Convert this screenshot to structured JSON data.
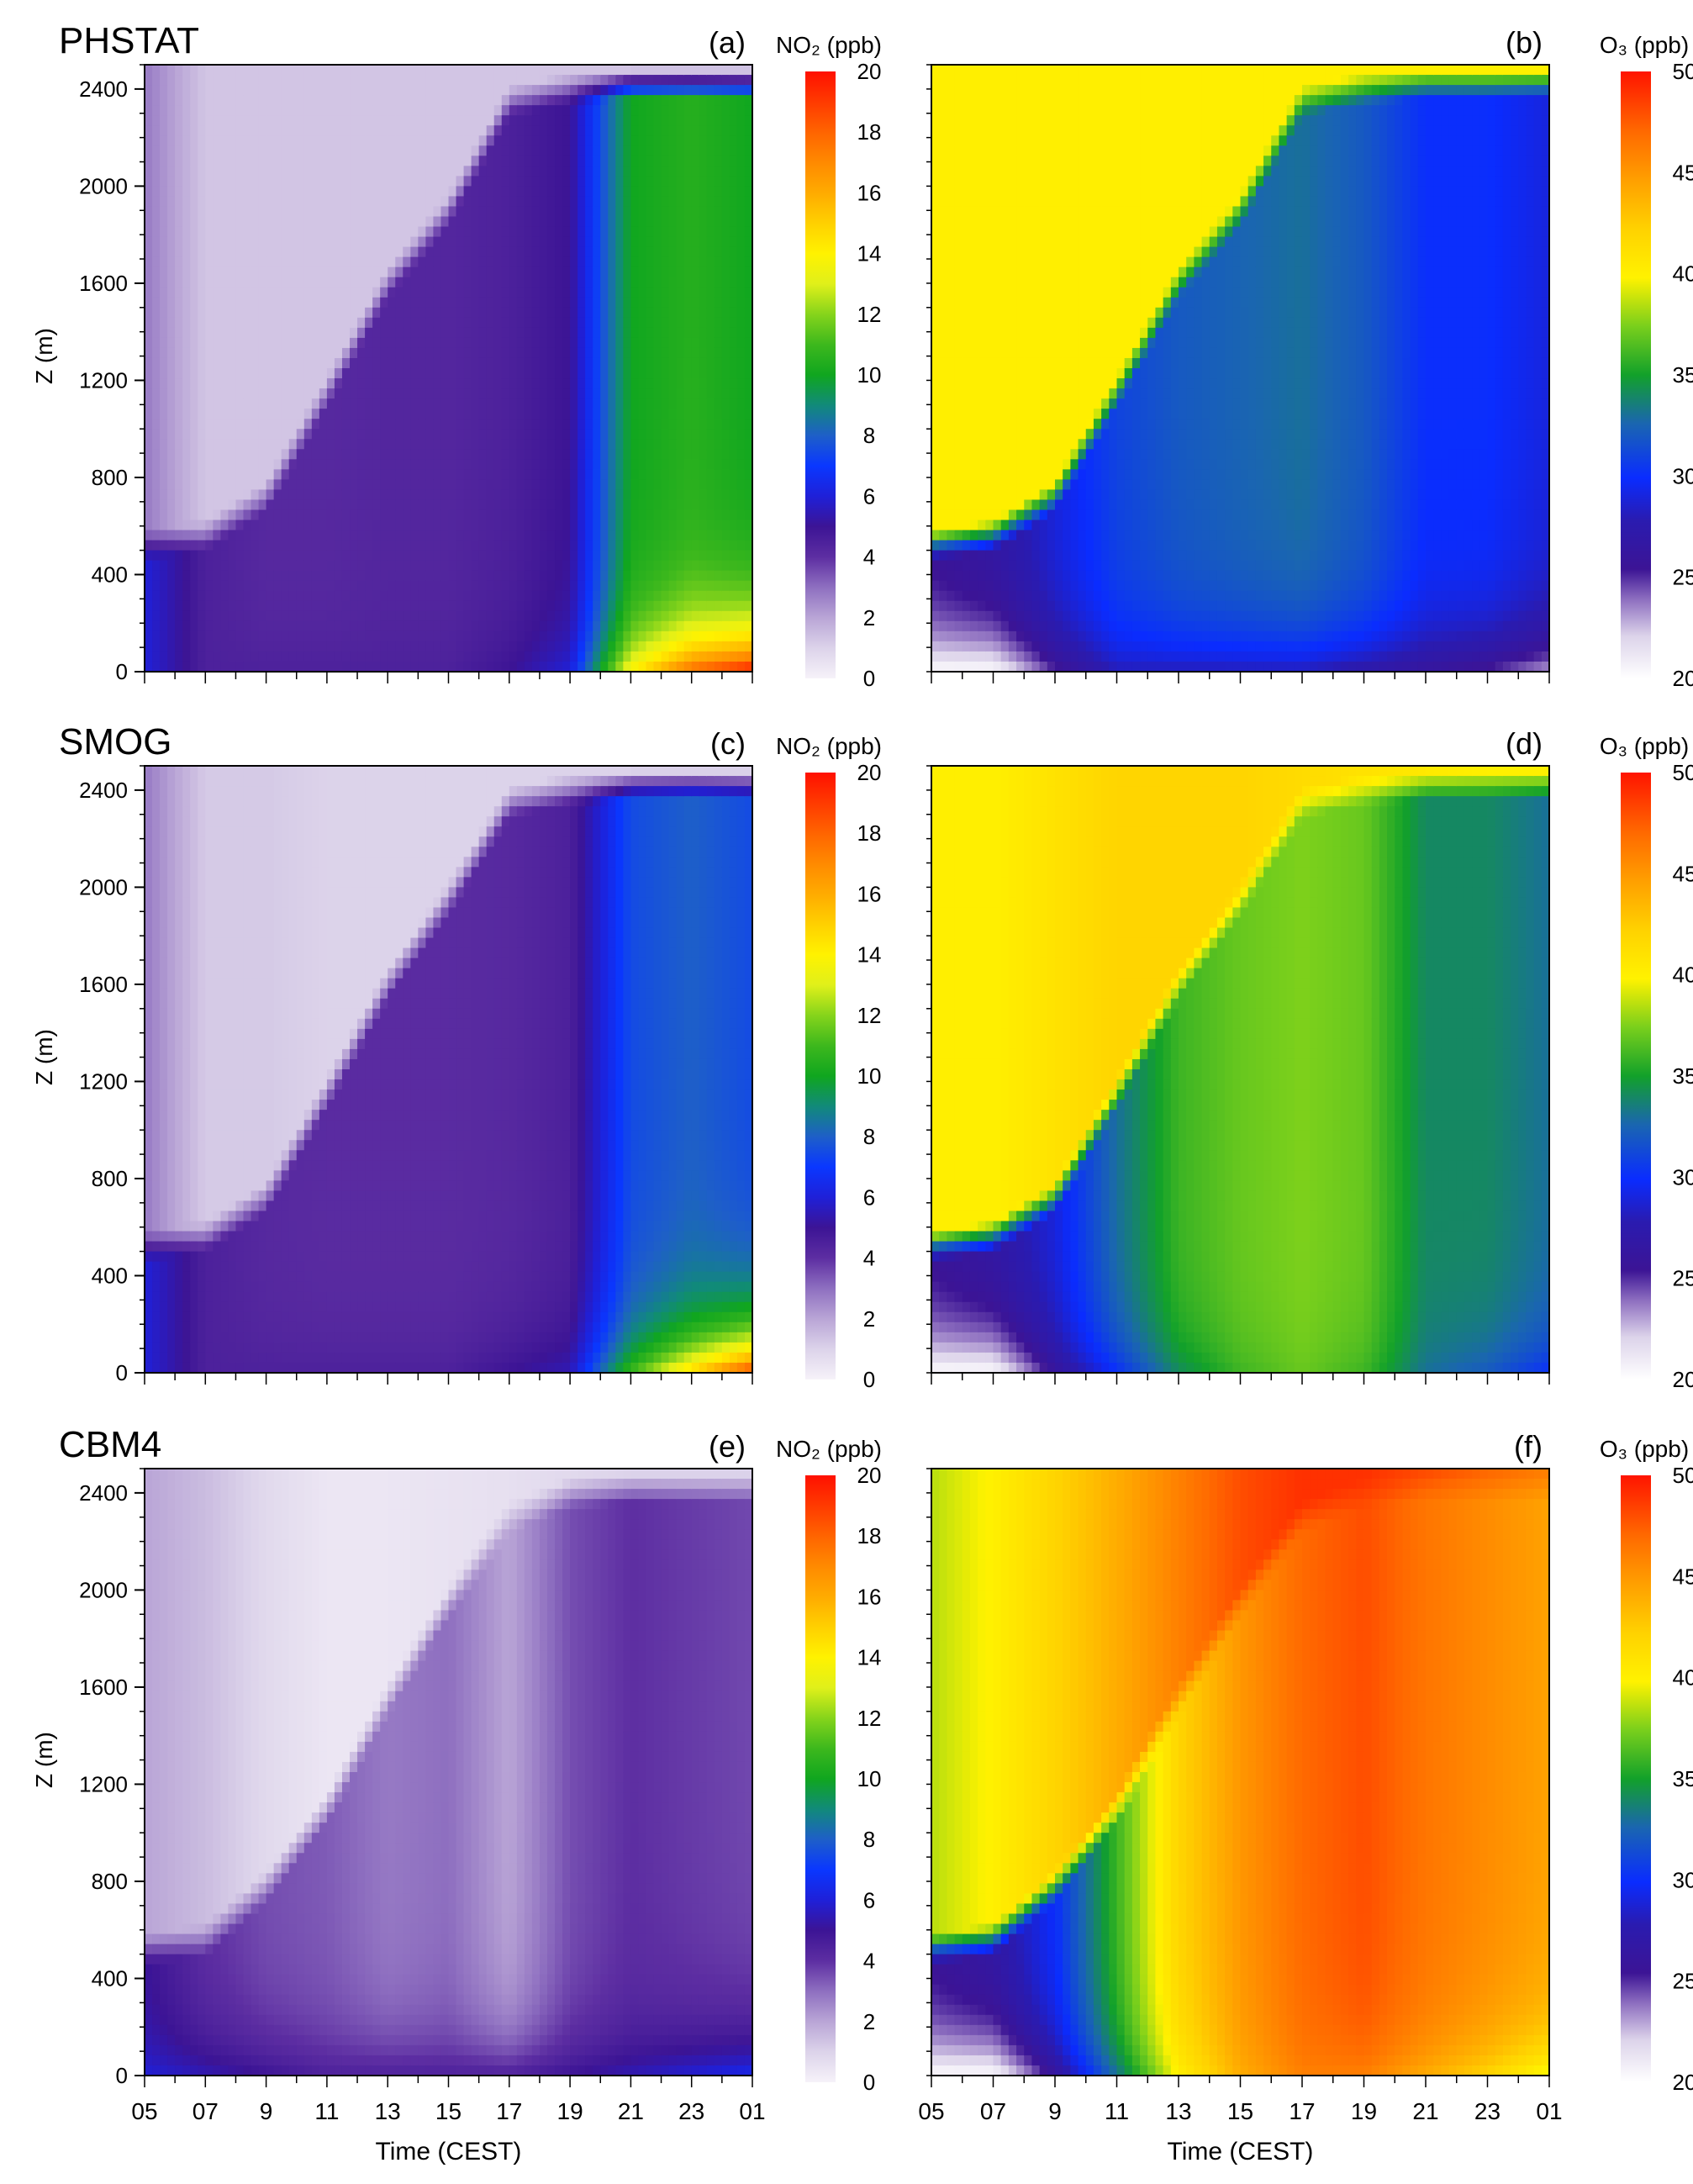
{
  "figure": {
    "chart_data": [
      {
        "type": "heatmap",
        "panel": "(a)",
        "title": "PHSTAT",
        "variable": "NO2",
        "unit": "ppb",
        "colorbar_label": "NO₂ (ppb)",
        "cbar_range": [
          0,
          20
        ],
        "cbar_ticks": [
          0,
          2,
          4,
          6,
          8,
          10,
          12,
          14,
          16,
          18,
          20
        ],
        "ylabel": "Z (m)",
        "xlabel": "",
        "ylim": [
          0,
          2500
        ],
        "yticks": [
          0,
          400,
          800,
          1200,
          1600,
          2000,
          2400
        ],
        "xlim": [
          5,
          25
        ],
        "xtick_labels": [],
        "x_time_h": [
          5,
          7,
          9,
          11,
          13,
          15,
          17,
          19,
          21,
          23,
          25
        ],
        "boundary_layer_top_m": [
          520,
          560,
          720,
          1150,
          1600,
          1900,
          2350,
          2400,
          2420,
          2420,
          2420
        ],
        "residual_layer": [
          2.8,
          1.3,
          1.3,
          1.3,
          1.3,
          1.3,
          1.3,
          1.3,
          1.3,
          1.3,
          1.3
        ],
        "mixed_layer": [
          6,
          4.5,
          4.2,
          4.2,
          4.3,
          4.3,
          4.5,
          5,
          10,
          10.5,
          10
        ],
        "surface_layer": [
          6,
          4.5,
          4.5,
          4.5,
          4.5,
          4.5,
          5,
          6,
          14,
          18,
          20
        ]
      },
      {
        "type": "heatmap",
        "panel": "(b)",
        "title": "",
        "variable": "O3",
        "unit": "ppb",
        "colorbar_label": "O₃ (ppb)",
        "cbar_range": [
          20,
          50
        ],
        "cbar_ticks": [
          20,
          25,
          30,
          35,
          40,
          45,
          50
        ],
        "ylabel": "",
        "xlabel": "",
        "ylim": [
          0,
          2500
        ],
        "yticks": [],
        "xlim": [
          5,
          25
        ],
        "xtick_labels": [],
        "x_time_h": [
          5,
          7,
          9,
          11,
          13,
          15,
          17,
          19,
          21,
          23,
          25
        ],
        "boundary_layer_top_m": [
          520,
          560,
          720,
          1150,
          1600,
          1900,
          2350,
          2400,
          2420,
          2420,
          2420
        ],
        "residual_layer": [
          40,
          40,
          40,
          40,
          40,
          40,
          40,
          40,
          40,
          40,
          40
        ],
        "mixed_layer": [
          26,
          27,
          29,
          31,
          32,
          32.5,
          33,
          32,
          30,
          30,
          29
        ],
        "surface_layer": [
          20,
          20,
          25,
          28,
          28,
          28,
          28,
          27,
          26,
          25,
          23
        ]
      },
      {
        "type": "heatmap",
        "panel": "(c)",
        "title": "SMOG",
        "variable": "NO2",
        "unit": "ppb",
        "colorbar_label": "NO₂ (ppb)",
        "cbar_range": [
          0,
          20
        ],
        "cbar_ticks": [
          0,
          2,
          4,
          6,
          8,
          10,
          12,
          14,
          16,
          18,
          20
        ],
        "ylabel": "Z (m)",
        "xlabel": "",
        "ylim": [
          0,
          2500
        ],
        "yticks": [
          0,
          400,
          800,
          1200,
          1600,
          2000,
          2400
        ],
        "xlim": [
          5,
          25
        ],
        "xtick_labels": [],
        "x_time_h": [
          5,
          7,
          9,
          11,
          13,
          15,
          17,
          19,
          21,
          23,
          25
        ],
        "boundary_layer_top_m": [
          520,
          560,
          720,
          1150,
          1600,
          1950,
          2350,
          2400,
          2420,
          2420,
          2420
        ],
        "residual_layer": [
          2.8,
          1.2,
          1.2,
          1.0,
          1.0,
          1.0,
          1.0,
          1.0,
          1.0,
          1.0,
          1.0
        ],
        "mixed_layer": [
          6,
          4.5,
          4.2,
          4.1,
          4.1,
          4.1,
          4.2,
          4.5,
          7.5,
          8,
          7.5
        ],
        "surface_layer": [
          6,
          4.5,
          4.5,
          4.5,
          4.5,
          4.5,
          5,
          5.5,
          11,
          15,
          19
        ]
      },
      {
        "type": "heatmap",
        "panel": "(d)",
        "title": "",
        "variable": "O3",
        "unit": "ppb",
        "colorbar_label": "O₃ (ppb)",
        "cbar_range": [
          20,
          50
        ],
        "cbar_ticks": [
          20,
          25,
          30,
          35,
          40,
          45,
          50
        ],
        "ylabel": "",
        "xlabel": "",
        "ylim": [
          0,
          2500
        ],
        "yticks": [],
        "xlim": [
          5,
          25
        ],
        "xtick_labels": [],
        "x_time_h": [
          5,
          7,
          9,
          11,
          13,
          15,
          17,
          19,
          21,
          23,
          25
        ],
        "boundary_layer_top_m": [
          520,
          560,
          720,
          1150,
          1600,
          1950,
          2350,
          2400,
          2420,
          2420,
          2420
        ],
        "residual_layer": [
          40,
          40,
          41,
          42,
          42,
          42,
          41.5,
          41,
          40.5,
          40,
          40
        ],
        "mixed_layer": [
          26,
          27,
          29,
          33,
          36,
          37,
          37.5,
          37,
          34,
          34,
          33
        ],
        "surface_layer": [
          20,
          20,
          26,
          30,
          34,
          36,
          37,
          36,
          33,
          32,
          30
        ]
      },
      {
        "type": "heatmap",
        "panel": "(e)",
        "title": "CBM4",
        "variable": "NO2",
        "unit": "ppb",
        "colorbar_label": "NO₂ (ppb)",
        "cbar_range": [
          0,
          20
        ],
        "cbar_ticks": [
          0,
          2,
          4,
          6,
          8,
          10,
          12,
          14,
          16,
          18,
          20
        ],
        "ylabel": "Z (m)",
        "xlabel": "Time (CEST)",
        "ylim": [
          0,
          2500
        ],
        "yticks": [
          0,
          400,
          800,
          1200,
          1600,
          2000,
          2400
        ],
        "xlim": [
          5,
          25
        ],
        "xtick_labels": [
          "05",
          "07",
          "9",
          "11",
          "13",
          "15",
          "17",
          "19",
          "21",
          "23",
          "01"
        ],
        "x_time_h": [
          5,
          7,
          9,
          11,
          13,
          15,
          17,
          19,
          21,
          23,
          25
        ],
        "boundary_layer_top_m": [
          520,
          560,
          780,
          1100,
          1550,
          1950,
          2300,
          2400,
          2420,
          2420,
          2420
        ],
        "residual_layer": [
          2,
          1.5,
          0.8,
          0.4,
          0.4,
          0.5,
          0.6,
          0.8,
          1.0,
          1.0,
          1.0
        ],
        "mixed_layer": [
          5,
          4,
          3.5,
          3.3,
          2.8,
          3.0,
          2.0,
          3.5,
          4.0,
          3.8,
          3.6
        ],
        "surface_layer": [
          6,
          5.5,
          5,
          4.5,
          4.5,
          4.5,
          4.5,
          5,
          5.5,
          6,
          6.5
        ]
      },
      {
        "type": "heatmap",
        "panel": "(f)",
        "title": "",
        "variable": "O3",
        "unit": "ppb",
        "colorbar_label": "O₃ (ppb)",
        "cbar_range": [
          20,
          50
        ],
        "cbar_ticks": [
          20,
          25,
          30,
          35,
          40,
          45,
          50
        ],
        "ylabel": "",
        "xlabel": "Time (CEST)",
        "ylim": [
          0,
          2500
        ],
        "yticks": [],
        "xlim": [
          5,
          25
        ],
        "xtick_labels": [
          "05",
          "07",
          "9",
          "11",
          "13",
          "15",
          "17",
          "19",
          "21",
          "23",
          "01"
        ],
        "x_time_h": [
          5,
          7,
          9,
          11,
          13,
          15,
          17,
          19,
          21,
          23,
          25
        ],
        "boundary_layer_top_m": [
          520,
          560,
          780,
          1100,
          1550,
          1950,
          2300,
          2400,
          2420,
          2420,
          2420
        ],
        "residual_layer": [
          38.5,
          40,
          42,
          44,
          46,
          48,
          49,
          49,
          48,
          47,
          46
        ],
        "mixed_layer": [
          26,
          27,
          30,
          36,
          42,
          45,
          47,
          48,
          46.5,
          45.5,
          44.5
        ],
        "surface_layer": [
          20,
          20,
          26,
          33,
          40,
          44,
          46,
          46,
          44,
          42,
          39
        ]
      }
    ]
  }
}
